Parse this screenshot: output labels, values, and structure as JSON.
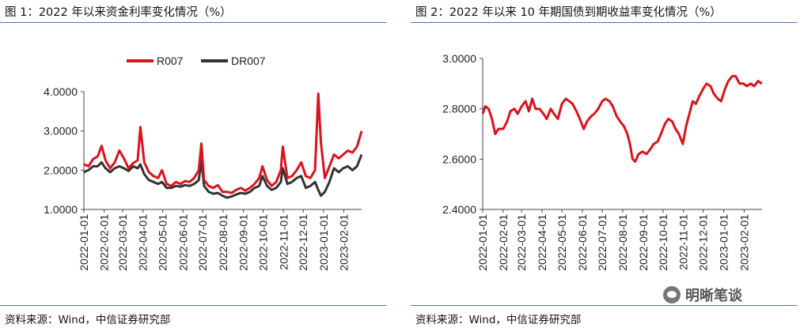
{
  "charts": [
    {
      "title": "图 1：2022 年以来资金利率变化情况（%）",
      "source": "资料来源：Wind，中信证券研究部"
    },
    {
      "title": "图 2：2022 年以来 10 年期国债到期收益率变化情况（%）",
      "source": "资料来源：Wind，中信证券研究部"
    }
  ],
  "watermark": {
    "text": "明晰笔谈",
    "icon": "wechat-icon"
  },
  "chart_data": [
    {
      "type": "line",
      "ylim": [
        1.0,
        4.0
      ],
      "y_ticks": [
        "1.0000",
        "2.0000",
        "3.0000",
        "4.0000"
      ],
      "x_ticks": [
        "2022-01-01",
        "2022-02-01",
        "2022-03-01",
        "2022-04-01",
        "2022-05-01",
        "2022-06-01",
        "2022-07-01",
        "2022-08-01",
        "2022-09-01",
        "2022-10-01",
        "2022-11-01",
        "2022-12-01",
        "2023-01-01",
        "2023-02-01"
      ],
      "x_range": [
        "2022-01-01",
        "2023-02-28"
      ],
      "legend_position": "top-center",
      "grid": false,
      "series": [
        {
          "name": "R007",
          "color": "#d7141d",
          "points": [
            [
              "2022-01-01",
              2.15
            ],
            [
              "2022-01-08",
              2.1
            ],
            [
              "2022-01-15",
              2.28
            ],
            [
              "2022-01-22",
              2.35
            ],
            [
              "2022-01-28",
              2.62
            ],
            [
              "2022-02-03",
              2.25
            ],
            [
              "2022-02-10",
              2.05
            ],
            [
              "2022-02-17",
              2.2
            ],
            [
              "2022-02-24",
              2.5
            ],
            [
              "2022-03-03",
              2.3
            ],
            [
              "2022-03-10",
              2.05
            ],
            [
              "2022-03-17",
              2.18
            ],
            [
              "2022-03-24",
              2.25
            ],
            [
              "2022-03-28",
              3.1
            ],
            [
              "2022-04-03",
              2.2
            ],
            [
              "2022-04-10",
              1.95
            ],
            [
              "2022-04-17",
              1.85
            ],
            [
              "2022-04-24",
              1.8
            ],
            [
              "2022-04-30",
              2.0
            ],
            [
              "2022-05-07",
              1.65
            ],
            [
              "2022-05-14",
              1.6
            ],
            [
              "2022-05-21",
              1.7
            ],
            [
              "2022-05-28",
              1.65
            ],
            [
              "2022-06-04",
              1.72
            ],
            [
              "2022-06-11",
              1.7
            ],
            [
              "2022-06-18",
              1.8
            ],
            [
              "2022-06-25",
              2.0
            ],
            [
              "2022-06-29",
              2.68
            ],
            [
              "2022-07-03",
              1.75
            ],
            [
              "2022-07-10",
              1.6
            ],
            [
              "2022-07-17",
              1.55
            ],
            [
              "2022-07-24",
              1.62
            ],
            [
              "2022-07-31",
              1.45
            ],
            [
              "2022-08-07",
              1.45
            ],
            [
              "2022-08-14",
              1.42
            ],
            [
              "2022-08-21",
              1.5
            ],
            [
              "2022-08-28",
              1.55
            ],
            [
              "2022-09-04",
              1.48
            ],
            [
              "2022-09-11",
              1.55
            ],
            [
              "2022-09-18",
              1.65
            ],
            [
              "2022-09-25",
              1.8
            ],
            [
              "2022-09-30",
              2.1
            ],
            [
              "2022-10-07",
              1.75
            ],
            [
              "2022-10-14",
              1.6
            ],
            [
              "2022-10-21",
              1.7
            ],
            [
              "2022-10-28",
              2.0
            ],
            [
              "2022-10-31",
              2.6
            ],
            [
              "2022-11-07",
              1.8
            ],
            [
              "2022-11-14",
              1.85
            ],
            [
              "2022-11-21",
              2.0
            ],
            [
              "2022-11-28",
              2.2
            ],
            [
              "2022-12-05",
              1.85
            ],
            [
              "2022-12-12",
              1.8
            ],
            [
              "2022-12-19",
              2.0
            ],
            [
              "2022-12-24",
              3.95
            ],
            [
              "2022-12-28",
              2.7
            ],
            [
              "2023-01-03",
              1.8
            ],
            [
              "2023-01-10",
              2.1
            ],
            [
              "2023-01-17",
              2.4
            ],
            [
              "2023-01-24",
              2.3
            ],
            [
              "2023-01-31",
              2.4
            ],
            [
              "2023-02-07",
              2.5
            ],
            [
              "2023-02-14",
              2.45
            ],
            [
              "2023-02-21",
              2.6
            ],
            [
              "2023-02-28",
              3.0
            ]
          ]
        },
        {
          "name": "DR007",
          "color": "#333333",
          "points": [
            [
              "2022-01-01",
              1.95
            ],
            [
              "2022-01-08",
              2.0
            ],
            [
              "2022-01-15",
              2.1
            ],
            [
              "2022-01-22",
              2.1
            ],
            [
              "2022-01-28",
              2.2
            ],
            [
              "2022-02-03",
              2.05
            ],
            [
              "2022-02-10",
              1.95
            ],
            [
              "2022-02-17",
              2.05
            ],
            [
              "2022-02-24",
              2.1
            ],
            [
              "2022-03-03",
              2.05
            ],
            [
              "2022-03-10",
              1.98
            ],
            [
              "2022-03-17",
              2.1
            ],
            [
              "2022-03-24",
              2.05
            ],
            [
              "2022-03-28",
              2.15
            ],
            [
              "2022-04-03",
              1.9
            ],
            [
              "2022-04-10",
              1.75
            ],
            [
              "2022-04-17",
              1.7
            ],
            [
              "2022-04-24",
              1.65
            ],
            [
              "2022-04-30",
              1.7
            ],
            [
              "2022-05-07",
              1.55
            ],
            [
              "2022-05-14",
              1.55
            ],
            [
              "2022-05-21",
              1.6
            ],
            [
              "2022-05-28",
              1.58
            ],
            [
              "2022-06-04",
              1.62
            ],
            [
              "2022-06-11",
              1.6
            ],
            [
              "2022-06-18",
              1.65
            ],
            [
              "2022-06-25",
              1.75
            ],
            [
              "2022-06-29",
              2.25
            ],
            [
              "2022-07-03",
              1.6
            ],
            [
              "2022-07-10",
              1.45
            ],
            [
              "2022-07-17",
              1.4
            ],
            [
              "2022-07-24",
              1.42
            ],
            [
              "2022-07-31",
              1.35
            ],
            [
              "2022-08-07",
              1.3
            ],
            [
              "2022-08-14",
              1.33
            ],
            [
              "2022-08-21",
              1.38
            ],
            [
              "2022-08-28",
              1.42
            ],
            [
              "2022-09-04",
              1.4
            ],
            [
              "2022-09-11",
              1.45
            ],
            [
              "2022-09-18",
              1.55
            ],
            [
              "2022-09-25",
              1.6
            ],
            [
              "2022-09-30",
              1.85
            ],
            [
              "2022-10-07",
              1.6
            ],
            [
              "2022-10-14",
              1.5
            ],
            [
              "2022-10-21",
              1.55
            ],
            [
              "2022-10-28",
              1.7
            ],
            [
              "2022-10-31",
              2.05
            ],
            [
              "2022-11-07",
              1.65
            ],
            [
              "2022-11-14",
              1.7
            ],
            [
              "2022-11-21",
              1.8
            ],
            [
              "2022-11-28",
              1.85
            ],
            [
              "2022-12-05",
              1.55
            ],
            [
              "2022-12-12",
              1.6
            ],
            [
              "2022-12-19",
              1.7
            ],
            [
              "2022-12-24",
              1.5
            ],
            [
              "2022-12-28",
              1.35
            ],
            [
              "2023-01-03",
              1.45
            ],
            [
              "2023-01-10",
              1.7
            ],
            [
              "2023-01-17",
              2.05
            ],
            [
              "2023-01-24",
              1.95
            ],
            [
              "2023-01-31",
              2.05
            ],
            [
              "2023-02-07",
              2.1
            ],
            [
              "2023-02-14",
              2.0
            ],
            [
              "2023-02-21",
              2.1
            ],
            [
              "2023-02-28",
              2.4
            ]
          ]
        }
      ]
    },
    {
      "type": "line",
      "ylim": [
        2.4,
        3.0
      ],
      "y_ticks": [
        "2.4000",
        "2.6000",
        "2.8000",
        "3.0000"
      ],
      "x_ticks": [
        "2022-01-01",
        "2022-02-01",
        "2022-03-01",
        "2022-04-01",
        "2022-05-01",
        "2022-06-01",
        "2022-07-01",
        "2022-08-01",
        "2022-09-01",
        "2022-10-01",
        "2022-11-01",
        "2022-12-01",
        "2023-01-01",
        "2023-02-01"
      ],
      "x_range": [
        "2022-01-01",
        "2023-02-28"
      ],
      "legend_position": "none",
      "grid": false,
      "series": [
        {
          "color": "#d7141d",
          "points": [
            [
              "2022-01-01",
              2.78
            ],
            [
              "2022-01-05",
              2.81
            ],
            [
              "2022-01-10",
              2.8
            ],
            [
              "2022-01-15",
              2.76
            ],
            [
              "2022-01-20",
              2.7
            ],
            [
              "2022-01-25",
              2.72
            ],
            [
              "2022-02-01",
              2.72
            ],
            [
              "2022-02-07",
              2.75
            ],
            [
              "2022-02-12",
              2.79
            ],
            [
              "2022-02-18",
              2.8
            ],
            [
              "2022-02-23",
              2.78
            ],
            [
              "2022-03-01",
              2.81
            ],
            [
              "2022-03-07",
              2.83
            ],
            [
              "2022-03-12",
              2.79
            ],
            [
              "2022-03-17",
              2.84
            ],
            [
              "2022-03-22",
              2.8
            ],
            [
              "2022-03-28",
              2.8
            ],
            [
              "2022-04-03",
              2.78
            ],
            [
              "2022-04-08",
              2.76
            ],
            [
              "2022-04-14",
              2.8
            ],
            [
              "2022-04-19",
              2.78
            ],
            [
              "2022-04-25",
              2.76
            ],
            [
              "2022-05-01",
              2.82
            ],
            [
              "2022-05-07",
              2.84
            ],
            [
              "2022-05-12",
              2.83
            ],
            [
              "2022-05-17",
              2.82
            ],
            [
              "2022-05-23",
              2.79
            ],
            [
              "2022-05-28",
              2.76
            ],
            [
              "2022-06-03",
              2.72
            ],
            [
              "2022-06-08",
              2.75
            ],
            [
              "2022-06-14",
              2.77
            ],
            [
              "2022-06-19",
              2.78
            ],
            [
              "2022-06-25",
              2.8
            ],
            [
              "2022-07-01",
              2.83
            ],
            [
              "2022-07-06",
              2.84
            ],
            [
              "2022-07-12",
              2.83
            ],
            [
              "2022-07-17",
              2.81
            ],
            [
              "2022-07-23",
              2.77
            ],
            [
              "2022-07-28",
              2.75
            ],
            [
              "2022-08-03",
              2.73
            ],
            [
              "2022-08-08",
              2.7
            ],
            [
              "2022-08-12",
              2.66
            ],
            [
              "2022-08-16",
              2.6
            ],
            [
              "2022-08-20",
              2.59
            ],
            [
              "2022-08-25",
              2.62
            ],
            [
              "2022-08-31",
              2.63
            ],
            [
              "2022-09-06",
              2.62
            ],
            [
              "2022-09-12",
              2.64
            ],
            [
              "2022-09-17",
              2.66
            ],
            [
              "2022-09-23",
              2.67
            ],
            [
              "2022-09-28",
              2.7
            ],
            [
              "2022-10-04",
              2.74
            ],
            [
              "2022-10-09",
              2.76
            ],
            [
              "2022-10-15",
              2.75
            ],
            [
              "2022-10-20",
              2.72
            ],
            [
              "2022-10-25",
              2.7
            ],
            [
              "2022-10-31",
              2.66
            ],
            [
              "2022-11-05",
              2.73
            ],
            [
              "2022-11-10",
              2.78
            ],
            [
              "2022-11-15",
              2.83
            ],
            [
              "2022-11-20",
              2.82
            ],
            [
              "2022-11-25",
              2.85
            ],
            [
              "2022-12-01",
              2.88
            ],
            [
              "2022-12-06",
              2.9
            ],
            [
              "2022-12-12",
              2.89
            ],
            [
              "2022-12-17",
              2.86
            ],
            [
              "2022-12-23",
              2.84
            ],
            [
              "2022-12-28",
              2.83
            ],
            [
              "2023-01-03",
              2.88
            ],
            [
              "2023-01-08",
              2.91
            ],
            [
              "2023-01-14",
              2.93
            ],
            [
              "2023-01-19",
              2.93
            ],
            [
              "2023-01-25",
              2.9
            ],
            [
              "2023-01-31",
              2.9
            ],
            [
              "2023-02-05",
              2.89
            ],
            [
              "2023-02-11",
              2.9
            ],
            [
              "2023-02-16",
              2.89
            ],
            [
              "2023-02-22",
              2.91
            ],
            [
              "2023-02-28",
              2.9
            ]
          ]
        }
      ]
    }
  ]
}
